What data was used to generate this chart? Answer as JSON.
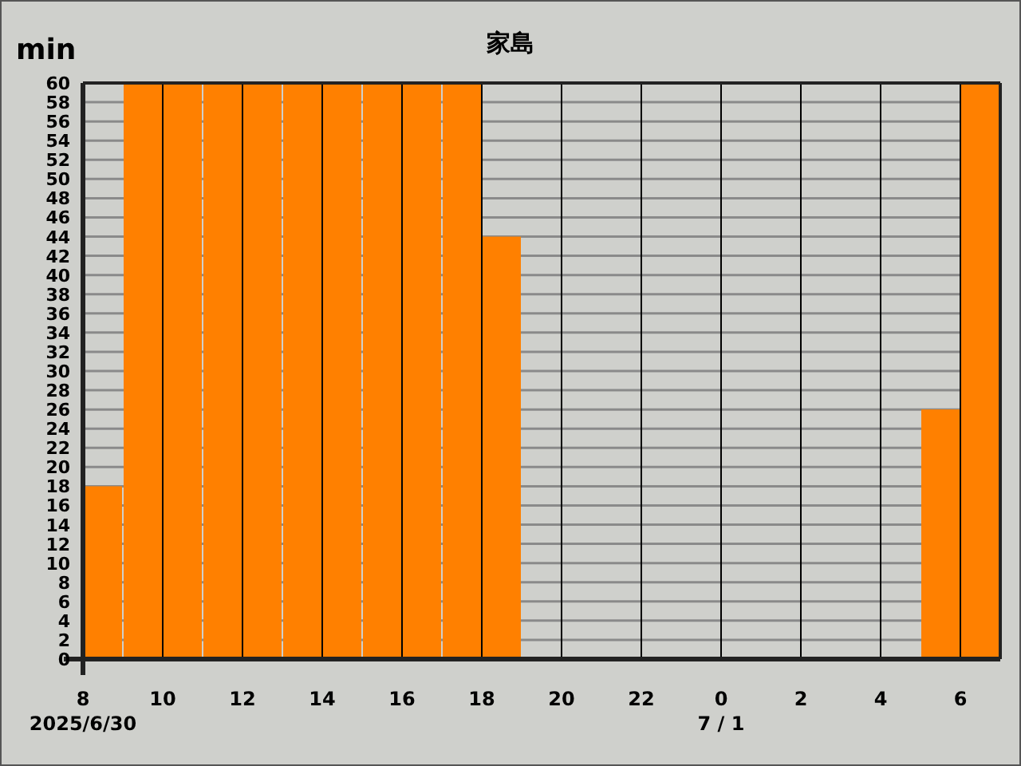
{
  "chart_data": {
    "type": "bar",
    "title": "家島",
    "ylabel": "min",
    "x": [
      "2025-06-30T08:30",
      "2025-06-30T09:30",
      "2025-06-30T10:30",
      "2025-06-30T11:30",
      "2025-06-30T12:30",
      "2025-06-30T13:30",
      "2025-06-30T14:30",
      "2025-06-30T15:30",
      "2025-06-30T16:30",
      "2025-06-30T17:30",
      "2025-06-30T18:30",
      "2025-06-30T19:30",
      "2025-06-30T20:30",
      "2025-06-30T21:30",
      "2025-06-30T22:30",
      "2025-06-30T23:30",
      "2025-07-01T00:30",
      "2025-07-01T01:30",
      "2025-07-01T02:30",
      "2025-07-01T03:30",
      "2025-07-01T04:30",
      "2025-07-01T05:30",
      "2025-07-01T06:30"
    ],
    "values": [
      18,
      60,
      60,
      60,
      60,
      60,
      60,
      60,
      60,
      60,
      44,
      0,
      0,
      0,
      0,
      0,
      0,
      0,
      0,
      0,
      0,
      26,
      60
    ],
    "color": "#ff8000",
    "xlim": [
      "2025-06-30T08:00",
      "2025-07-01T07:00"
    ],
    "xticks": [
      {
        "value": "2025-06-30T08:00",
        "label": "8\n2025/6/30"
      },
      {
        "value": "2025-06-30T10:00",
        "label": "10"
      },
      {
        "value": "2025-06-30T12:00",
        "label": "12"
      },
      {
        "value": "2025-06-30T14:00",
        "label": "14"
      },
      {
        "value": "2025-06-30T16:00",
        "label": "16"
      },
      {
        "value": "2025-06-30T18:00",
        "label": "18"
      },
      {
        "value": "2025-06-30T20:00",
        "label": "20"
      },
      {
        "value": "2025-06-30T22:00",
        "label": "22"
      },
      {
        "value": "2025-07-01T00:00",
        "label": "0\n7 / 1"
      },
      {
        "value": "2025-07-01T02:00",
        "label": "2"
      },
      {
        "value": "2025-07-01T04:00",
        "label": "4"
      },
      {
        "value": "2025-07-01T06:00",
        "label": "6"
      }
    ],
    "ylim": [
      0,
      60
    ],
    "yticks": [
      0,
      2,
      4,
      6,
      8,
      10,
      12,
      14,
      16,
      18,
      20,
      22,
      24,
      26,
      28,
      30,
      32,
      34,
      36,
      38,
      40,
      42,
      44,
      46,
      48,
      50,
      52,
      54,
      56,
      58,
      60
    ],
    "grid": true
  }
}
